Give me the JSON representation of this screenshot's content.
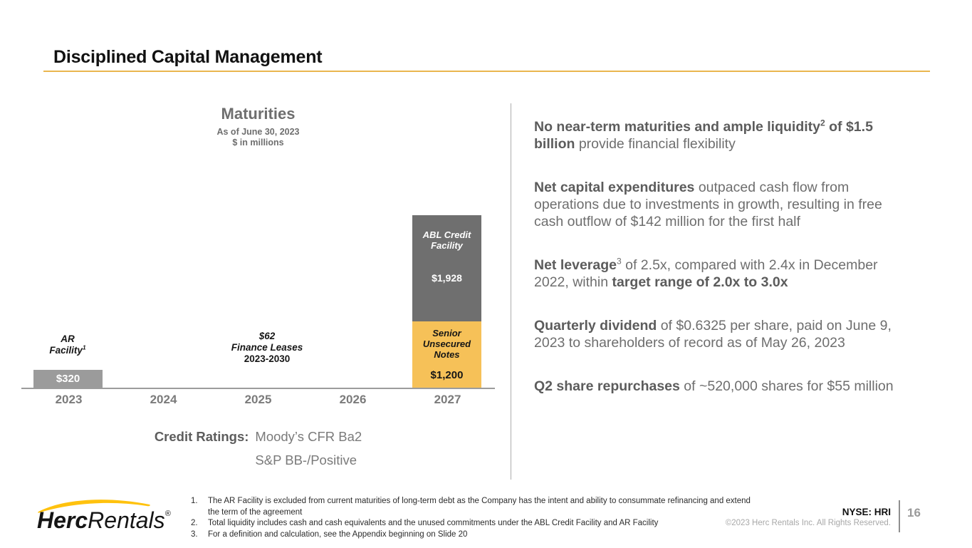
{
  "slide": {
    "title": "Disciplined Capital Management",
    "ticker": "NYSE: HRI",
    "copyright": "©2023 Herc Rentals Inc.  All Rights Reserved.",
    "page_number": "16",
    "accent_color": "#eab64e",
    "logo": {
      "brand_bold": "Herc",
      "brand_light": "Rentals",
      "reg": "®"
    }
  },
  "chart_data": {
    "type": "bar",
    "title": "Maturities",
    "subtitle1": "As of June 30, 2023",
    "subtitle2": "$ in millions",
    "categories": [
      "2023",
      "2024",
      "2025",
      "2026",
      "2027"
    ],
    "ylabel": "$ in millions",
    "grid": false,
    "series": [
      {
        "name": "AR Facility",
        "color": "#9b9b9b",
        "values": [
          320,
          0,
          0,
          0,
          0
        ]
      },
      {
        "name": "Senior Unsecured Notes",
        "color": "#f6c158",
        "values": [
          0,
          0,
          0,
          0,
          1200
        ]
      },
      {
        "name": "ABL Credit Facility",
        "color": "#6f6f6f",
        "values": [
          0,
          0,
          0,
          0,
          1928
        ]
      }
    ],
    "bars": {
      "ar_facility": {
        "value": 320,
        "value_label": "$320",
        "label_line1": "AR",
        "label_line2": "Facility",
        "label_sup": "1"
      },
      "abl": {
        "value": 1928,
        "value_label": "$1,928",
        "name_line1": "ABL Credit",
        "name_line2": "Facility"
      },
      "notes": {
        "value": 1200,
        "value_label": "$1,200",
        "name_line1": "Senior",
        "name_line2": "Unsecured",
        "name_line3": "Notes"
      }
    },
    "annotation_2025": {
      "line1": "$62",
      "line2": "Finance Leases",
      "line3": "2023-2030"
    },
    "credit_ratings": {
      "label": "Credit Ratings:",
      "line1": "Moody’s CFR Ba2",
      "line2": "S&P BB-/Positive"
    }
  },
  "right": {
    "bullets": [
      [
        {
          "t": "No near-term maturities and ample liquidity",
          "b": true
        },
        {
          "t": "2",
          "b": true,
          "sup": true
        },
        {
          "t": " of $1.5 billion",
          "b": true
        },
        {
          "t": " provide financial flexibility",
          "b": false
        }
      ],
      [
        {
          "t": "Net capital expenditures",
          "b": true
        },
        {
          "t": " outpaced cash flow from operations due to investments in growth, resulting in free cash outflow of $142 million for the first half",
          "b": false
        }
      ],
      [
        {
          "t": "Net leverage",
          "b": true
        },
        {
          "t": "3",
          "b": false,
          "sup": true
        },
        {
          "t": " of 2.5x, compared with 2.4x in December 2022, within ",
          "b": false
        },
        {
          "t": "target range of 2.0x to 3.0x",
          "b": true
        }
      ],
      [
        {
          "t": "Quarterly dividend",
          "b": true
        },
        {
          "t": " of $0.6325 per share, paid on June 9, 2023 to shareholders of record as of May 26, 2023",
          "b": false
        }
      ],
      [
        {
          "t": "Q2 share repurchases",
          "b": true
        },
        {
          "t": " of ~520,000 shares for $55 million",
          "b": false
        }
      ]
    ]
  },
  "footnotes": [
    {
      "num": "1.",
      "text": "The AR Facility is excluded from current maturities of long-term debt as the Company has the intent and ability to consummate refinancing and extend the term of the agreement"
    },
    {
      "num": "2.",
      "text": "Total liquidity includes cash and cash equivalents and the unused commitments under the ABL Credit Facility and AR Facility"
    },
    {
      "num": "3.",
      "text": "For a definition and calculation, see the Appendix beginning on Slide 20"
    }
  ]
}
